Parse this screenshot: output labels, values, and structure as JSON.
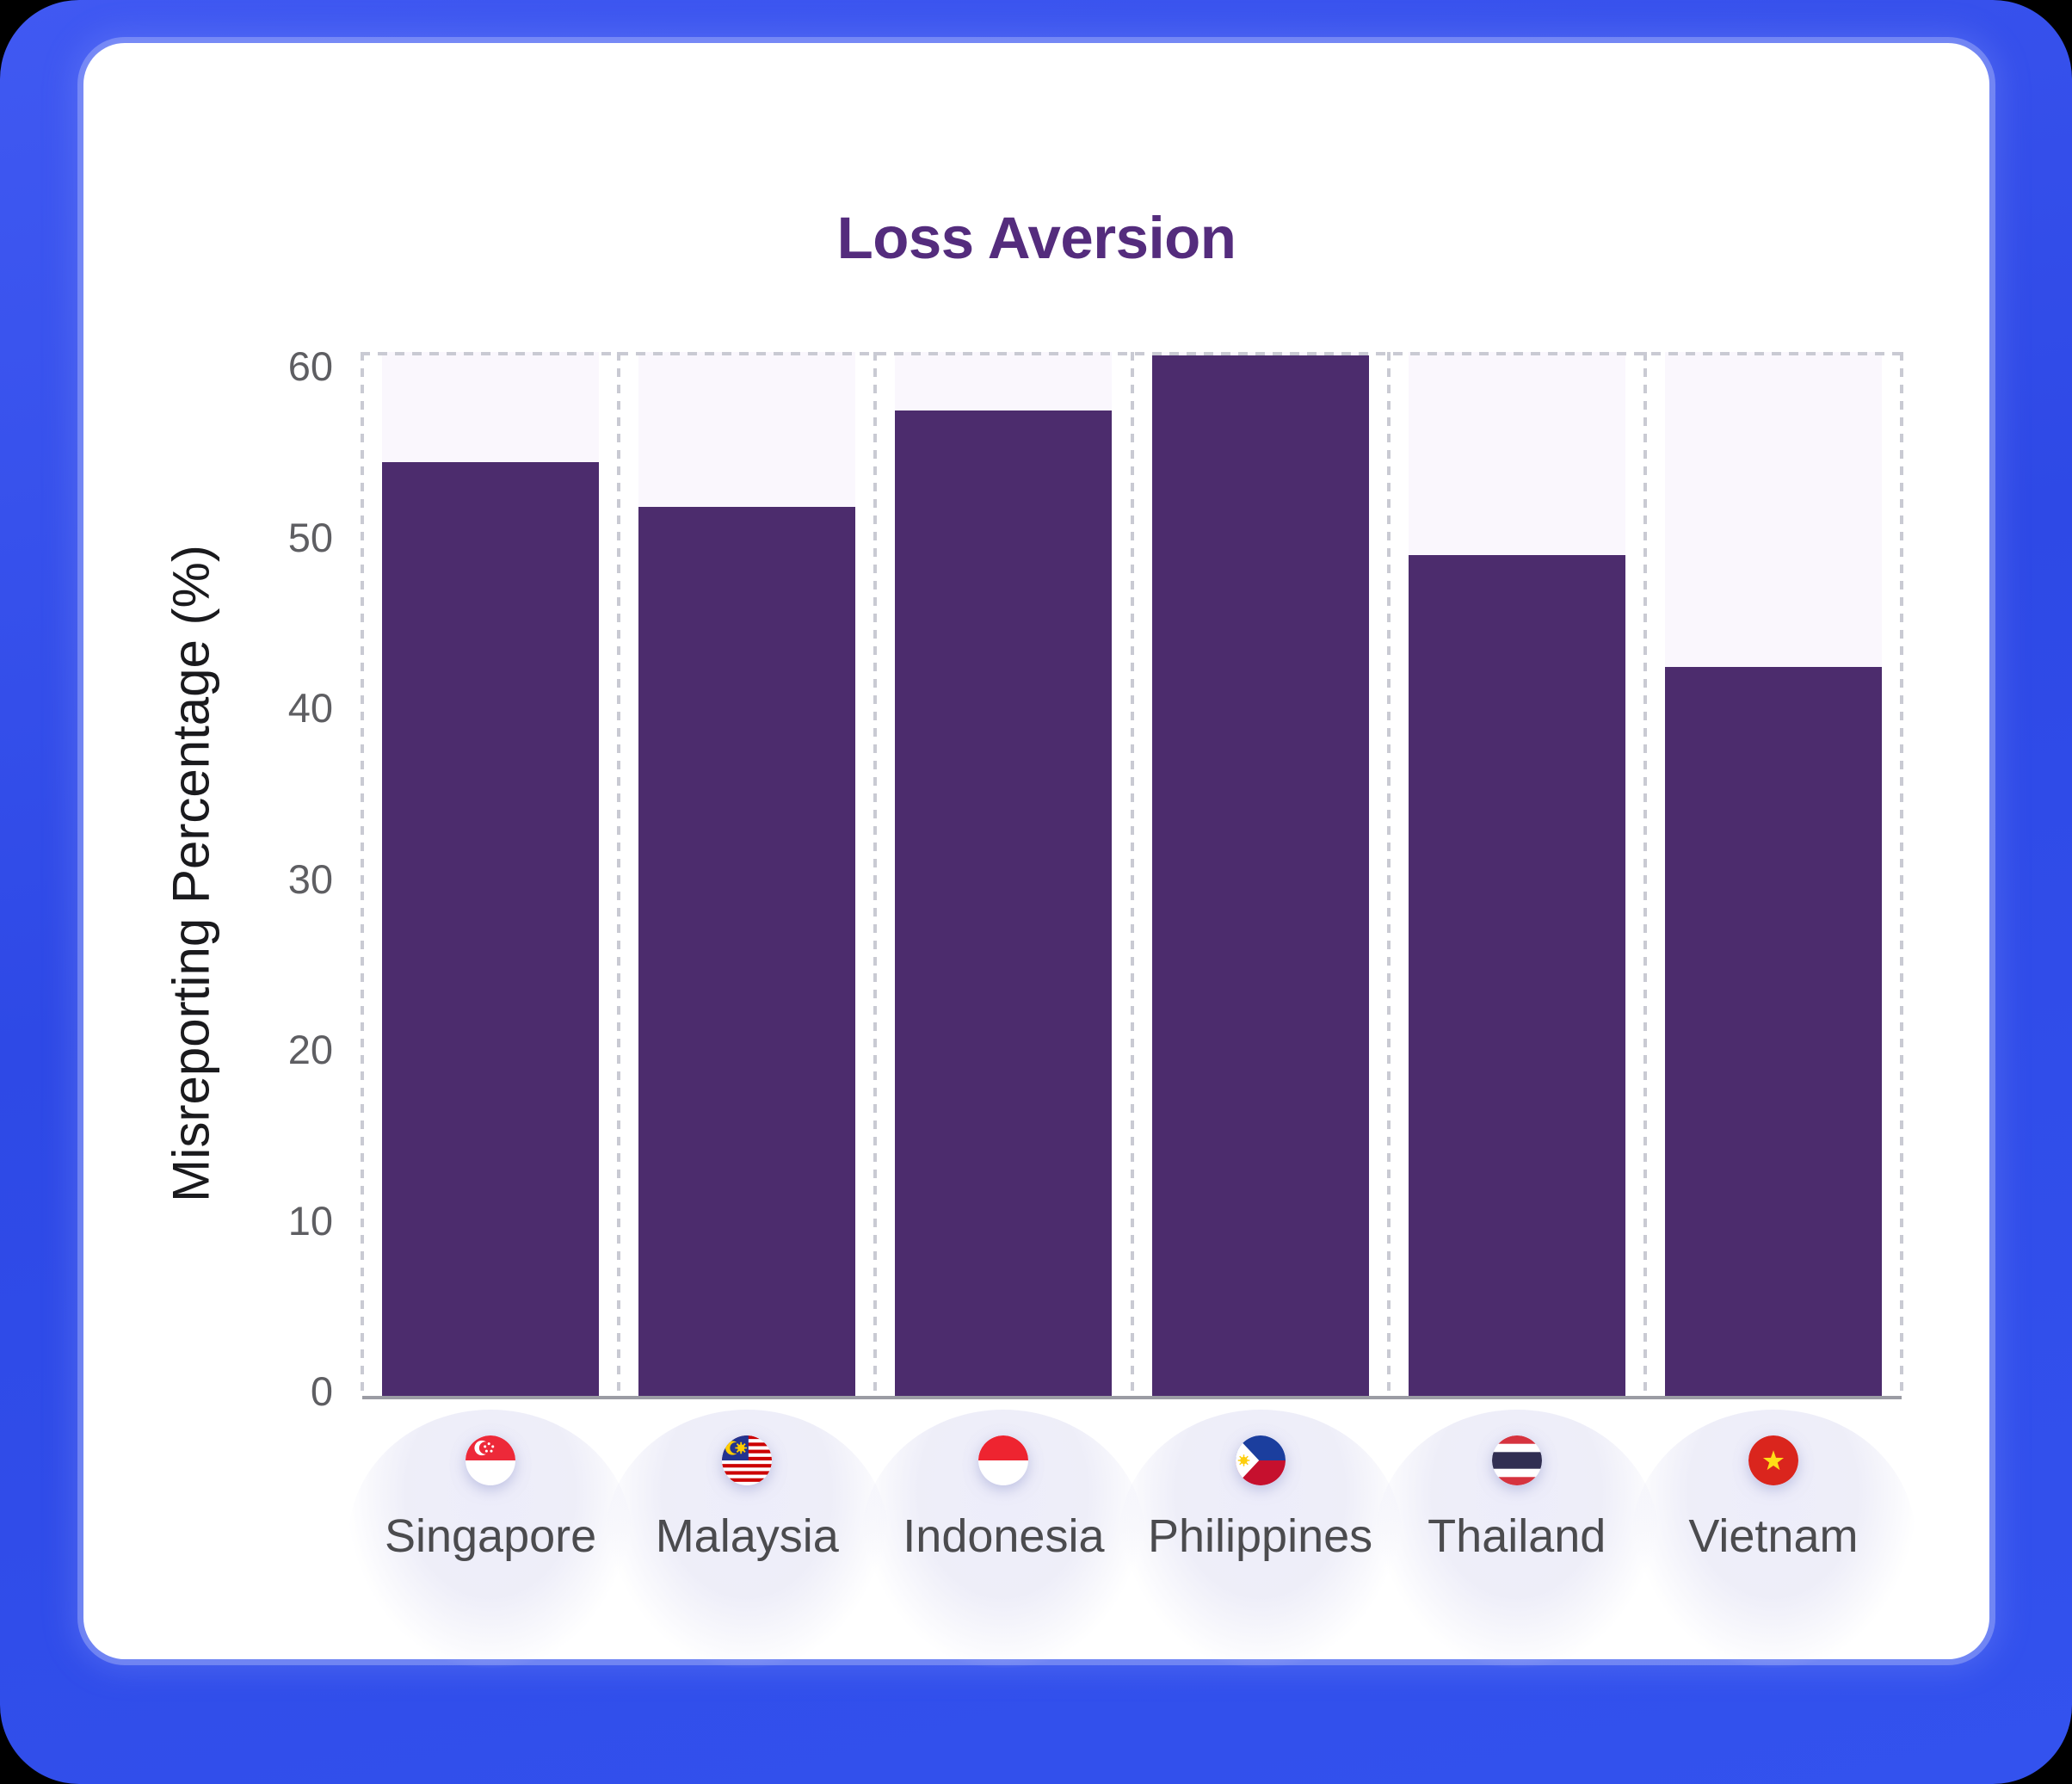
{
  "page": {
    "background_color": "#000000",
    "frame_color": "#3150EC",
    "card_color": "#FFFFFF"
  },
  "chart_data": {
    "type": "bar",
    "title": "Loss Aversion",
    "title_color": "#542C7D",
    "xlabel": "",
    "ylabel": "Misreporting Percentage (%)",
    "categories": [
      "Singapore",
      "Malaysia",
      "Indonesia",
      "Philippines",
      "Thailand",
      "Vietnam"
    ],
    "values": [
      54.3,
      51.7,
      57.3,
      60.5,
      48.9,
      42.4
    ],
    "flag_icons": [
      "singapore-flag-icon",
      "malaysia-flag-icon",
      "indonesia-flag-icon",
      "philippines-flag-icon",
      "thailand-flag-icon",
      "vietnam-flag-icon"
    ],
    "yticks": [
      0,
      10,
      20,
      30,
      40,
      50,
      60
    ],
    "ylim": [
      0,
      60
    ],
    "grid": "dashed column separators and dashed top line",
    "legend_position": "none",
    "bar_color": "#4C2C6D",
    "track_color": "#FAF7FD",
    "tick_label_color": "#5E5E62",
    "category_label_color": "#4B4B4E",
    "axis_line_color": "#9B9CA4"
  }
}
